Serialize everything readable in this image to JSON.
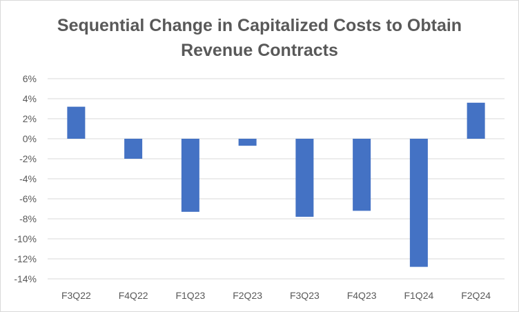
{
  "chart_data": {
    "type": "bar",
    "title_line1": "Sequential Change in Capitalized Costs to Obtain",
    "title_line2": "Revenue Contracts",
    "categories": [
      "F3Q22",
      "F4Q22",
      "F1Q23",
      "F2Q23",
      "F3Q23",
      "F4Q23",
      "F1Q24",
      "F2Q24"
    ],
    "values": [
      3.2,
      -2.0,
      -7.3,
      -0.7,
      -7.8,
      -7.2,
      -12.8,
      3.6
    ],
    "ylim": [
      -14,
      6
    ],
    "yticks": [
      6,
      4,
      2,
      0,
      -2,
      -4,
      -6,
      -8,
      -10,
      -12,
      -14
    ],
    "ytick_labels": [
      "6%",
      "4%",
      "2%",
      "0%",
      "-2%",
      "-4%",
      "-6%",
      "-8%",
      "-10%",
      "-12%",
      "-14%"
    ],
    "bar_color": "#4472c4",
    "grid_color": "#d9d9d9"
  }
}
